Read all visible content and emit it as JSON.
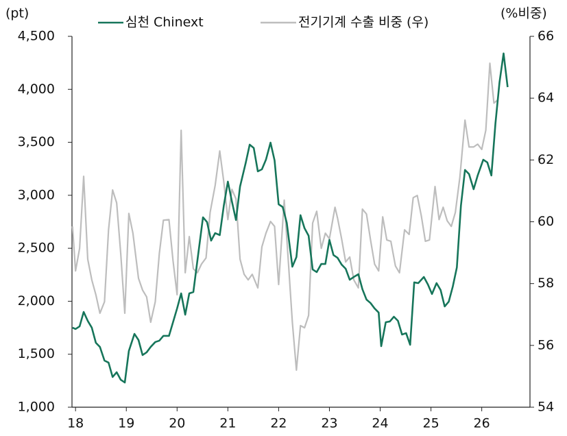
{
  "chart_data": {
    "type": "line",
    "y_label": "(pt)",
    "y2_label": "(%비중)",
    "xlim": [
      17.93,
      26.95
    ],
    "xticks": [
      18,
      19,
      20,
      21,
      22,
      23,
      24,
      25,
      26
    ],
    "ylim": [
      1000,
      4500
    ],
    "yticks": [
      {
        "value": 1000,
        "label": "1,000"
      },
      {
        "value": 1500,
        "label": "1,500"
      },
      {
        "value": 2000,
        "label": "2,000"
      },
      {
        "value": 2500,
        "label": "2,500"
      },
      {
        "value": 3000,
        "label": "3,000"
      },
      {
        "value": 3500,
        "label": "3,500"
      },
      {
        "value": 4000,
        "label": "4,000"
      },
      {
        "value": 4500,
        "label": "4,500"
      }
    ],
    "y2lim": [
      54,
      66
    ],
    "y2ticks": [
      54,
      56,
      58,
      60,
      62,
      64,
      66
    ],
    "series": [
      {
        "name": "심천 Chinext",
        "color": "#16755a",
        "axis": "y",
        "x": [
          17.94,
          18.0,
          18.08,
          18.16,
          18.24,
          18.32,
          18.4,
          18.48,
          18.57,
          18.65,
          18.73,
          18.81,
          18.89,
          18.97,
          19.05,
          19.16,
          19.24,
          19.32,
          19.4,
          19.48,
          19.57,
          19.65,
          19.73,
          19.84,
          19.92,
          20.0,
          20.08,
          20.16,
          20.24,
          20.32,
          20.4,
          20.51,
          20.59,
          20.67,
          20.75,
          20.84,
          20.92,
          21.0,
          21.08,
          21.16,
          21.24,
          21.35,
          21.43,
          21.51,
          21.59,
          21.67,
          21.75,
          21.84,
          21.92,
          22.0,
          22.08,
          22.16,
          22.27,
          22.35,
          22.43,
          22.51,
          22.59,
          22.67,
          22.75,
          22.84,
          22.92,
          23.0,
          23.08,
          23.16,
          23.24,
          23.32,
          23.4,
          23.48,
          23.57,
          23.65,
          23.73,
          23.81,
          23.89,
          23.97,
          24.02,
          24.11,
          24.19,
          24.27,
          24.35,
          24.43,
          24.51,
          24.59,
          24.67,
          24.75,
          24.86,
          24.94,
          25.02,
          25.11,
          25.19,
          25.27,
          25.35,
          25.43,
          25.51,
          25.59,
          25.67,
          25.75,
          25.84,
          25.92,
          26.03,
          26.11,
          26.19,
          26.27,
          26.35,
          26.43,
          26.51
        ],
        "values": [
          1751,
          1738,
          1763,
          1899,
          1815,
          1751,
          1608,
          1569,
          1440,
          1421,
          1285,
          1330,
          1259,
          1233,
          1531,
          1692,
          1634,
          1492,
          1518,
          1569,
          1615,
          1628,
          1673,
          1673,
          1802,
          1932,
          2074,
          1873,
          2074,
          2087,
          2385,
          2792,
          2747,
          2572,
          2643,
          2624,
          2902,
          3129,
          2941,
          2766,
          3083,
          3303,
          3478,
          3446,
          3226,
          3245,
          3336,
          3497,
          3329,
          2915,
          2889,
          2740,
          2326,
          2417,
          2812,
          2689,
          2618,
          2300,
          2275,
          2352,
          2352,
          2579,
          2436,
          2410,
          2346,
          2307,
          2203,
          2229,
          2255,
          2113,
          2016,
          1983,
          1932,
          1893,
          1576,
          1802,
          1809,
          1854,
          1815,
          1686,
          1699,
          1589,
          2178,
          2171,
          2229,
          2158,
          2068,
          2171,
          2106,
          1951,
          1996,
          2139,
          2320,
          2902,
          3239,
          3200,
          3057,
          3187,
          3336,
          3310,
          3187,
          3679,
          4067,
          4339,
          4021
        ]
      },
      {
        "name": "전기기계 수출 비중 (우)",
        "color": "#bdbdbd",
        "axis": "y2",
        "x": [
          17.94,
          18.0,
          18.08,
          18.16,
          18.24,
          18.32,
          18.4,
          18.48,
          18.57,
          18.65,
          18.73,
          18.81,
          18.89,
          18.97,
          19.05,
          19.13,
          19.24,
          19.32,
          19.4,
          19.48,
          19.57,
          19.65,
          19.73,
          19.84,
          19.92,
          20.0,
          20.08,
          20.16,
          20.24,
          20.32,
          20.4,
          20.48,
          20.57,
          20.65,
          20.75,
          20.84,
          20.92,
          21.0,
          21.08,
          21.16,
          21.24,
          21.32,
          21.4,
          21.48,
          21.59,
          21.67,
          21.75,
          21.84,
          21.92,
          22.0,
          22.11,
          22.19,
          22.27,
          22.35,
          22.43,
          22.51,
          22.59,
          22.67,
          22.75,
          22.84,
          22.92,
          23.0,
          23.11,
          23.16,
          23.24,
          23.32,
          23.4,
          23.48,
          23.57,
          23.65,
          23.73,
          23.81,
          23.89,
          23.97,
          24.05,
          24.13,
          24.21,
          24.3,
          24.38,
          24.48,
          24.57,
          24.65,
          24.73,
          24.81,
          24.89,
          24.97,
          25.08,
          25.16,
          25.24,
          25.32,
          25.4,
          25.48,
          25.57,
          25.67,
          25.75,
          25.84,
          25.92,
          26.0,
          26.08,
          26.16,
          26.24,
          26.32
        ],
        "values": [
          59.85,
          58.41,
          59.14,
          61.47,
          58.79,
          58.12,
          57.64,
          57.04,
          57.41,
          59.74,
          61.03,
          60.61,
          58.97,
          57.04,
          60.27,
          59.63,
          58.17,
          57.79,
          57.57,
          56.75,
          57.41,
          58.97,
          60.05,
          60.07,
          58.74,
          57.64,
          62.96,
          58.35,
          59.52,
          58.48,
          58.35,
          58.63,
          58.83,
          60.3,
          61.18,
          62.29,
          61.29,
          60.07,
          61.05,
          60.74,
          58.79,
          58.3,
          58.12,
          58.3,
          57.86,
          59.19,
          59.63,
          60.01,
          59.85,
          57.97,
          60.7,
          58.74,
          56.75,
          55.2,
          56.64,
          56.57,
          56.97,
          59.96,
          60.34,
          59.14,
          59.63,
          59.45,
          60.47,
          60.12,
          59.45,
          58.7,
          58.86,
          58.12,
          57.86,
          60.41,
          60.25,
          59.41,
          58.63,
          58.41,
          60.16,
          59.41,
          59.37,
          58.57,
          58.35,
          59.74,
          59.59,
          60.78,
          60.85,
          60.19,
          59.37,
          59.41,
          61.14,
          60.07,
          60.47,
          60.03,
          59.85,
          60.3,
          61.45,
          63.29,
          62.42,
          62.42,
          62.51,
          62.34,
          62.96,
          65.13,
          63.84,
          63.95
        ]
      }
    ]
  }
}
